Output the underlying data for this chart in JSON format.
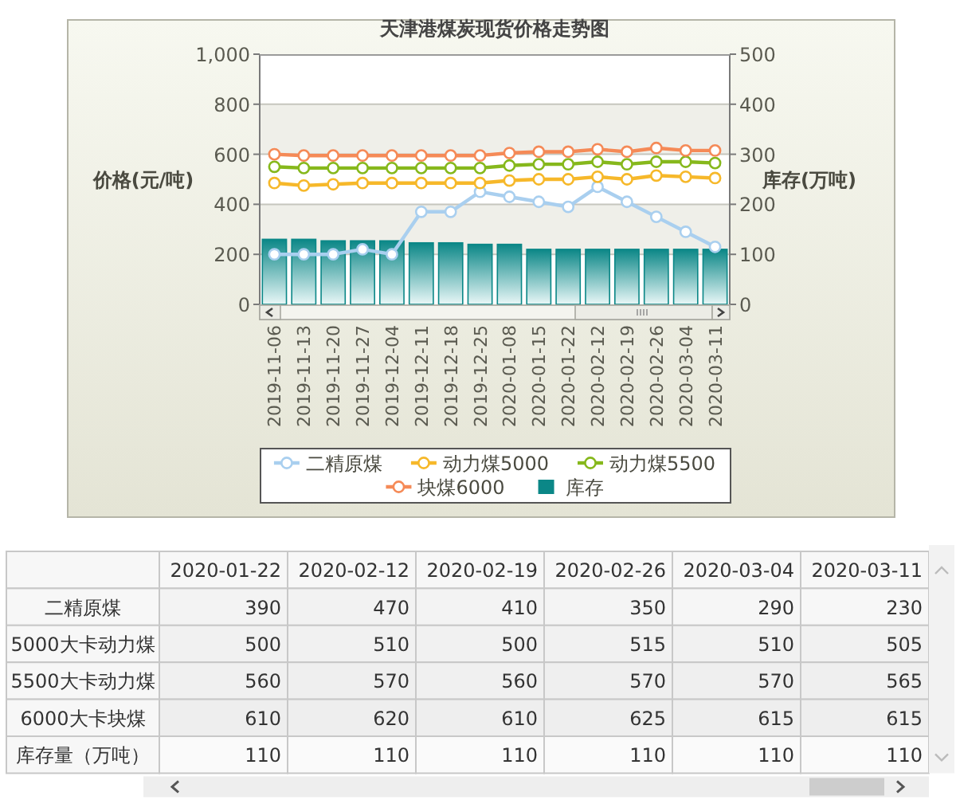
{
  "chart_data": [
    {
      "type": "bar",
      "title": "天津港煤炭现货价格走势图",
      "ylabel": "价格(元/吨)",
      "y2label": "库存(万吨)",
      "categories": [
        "2019-11-06",
        "2019-11-13",
        "2019-11-20",
        "2019-11-27",
        "2019-12-04",
        "2019-12-11",
        "2019-12-18",
        "2019-12-25",
        "2020-01-08",
        "2020-01-15",
        "2020-01-22",
        "2020-02-12",
        "2020-02-19",
        "2020-02-26",
        "2020-03-04",
        "2020-03-11"
      ],
      "series": [
        {
          "name": "二精原煤",
          "type": "line",
          "color": "#a9cfef",
          "values": [
            200,
            200,
            200,
            220,
            200,
            370,
            370,
            450,
            430,
            410,
            390,
            470,
            410,
            350,
            290,
            230
          ]
        },
        {
          "name": "动力煤5000",
          "type": "line",
          "color": "#f6b82a",
          "values": [
            485,
            475,
            480,
            485,
            485,
            485,
            485,
            485,
            495,
            500,
            500,
            510,
            500,
            515,
            510,
            505
          ]
        },
        {
          "name": "动力煤5500",
          "type": "line",
          "color": "#86b81c",
          "values": [
            550,
            545,
            545,
            545,
            545,
            545,
            545,
            545,
            555,
            560,
            560,
            570,
            560,
            570,
            570,
            565
          ]
        },
        {
          "name": "块煤6000",
          "type": "line",
          "color": "#f58a57",
          "values": [
            600,
            595,
            595,
            595,
            595,
            595,
            595,
            595,
            605,
            610,
            610,
            620,
            610,
            625,
            615,
            615
          ]
        },
        {
          "name": "库存",
          "type": "bar",
          "axis": "y2",
          "color": "#0b8787",
          "values": [
            130,
            130,
            127,
            127,
            127,
            123,
            123,
            120,
            120,
            110,
            110,
            110,
            110,
            110,
            110,
            110
          ]
        }
      ],
      "ylim": [
        0,
        1000
      ],
      "yticks": [
        0,
        200,
        400,
        600,
        800,
        {
          "value": 1000,
          "label": "1,000"
        }
      ],
      "y2lim": [
        0,
        500
      ],
      "y2ticks": [
        0,
        100,
        200,
        300,
        400,
        500
      ],
      "grid": "y",
      "legend": "bottom",
      "marker": "circle",
      "line_style": "solid"
    },
    {
      "type": "heatmap",
      "data_labels": true,
      "categories": [
        "2020-01-22",
        "2020-02-12",
        "2020-02-19",
        "2020-02-26",
        "2020-03-04",
        "2020-03-11"
      ],
      "y_categories": [
        "二精原煤",
        "5000大卡动力煤",
        "5500大卡动力煤",
        "6000大卡块煤",
        "库存量（万吨）"
      ],
      "cells": [
        [
          390,
          470,
          410,
          350,
          290,
          230
        ],
        [
          500,
          510,
          500,
          515,
          510,
          505
        ],
        [
          560,
          570,
          560,
          570,
          570,
          565
        ],
        [
          610,
          620,
          610,
          625,
          615,
          615
        ],
        [
          110,
          110,
          110,
          110,
          110,
          110
        ]
      ]
    }
  ]
}
